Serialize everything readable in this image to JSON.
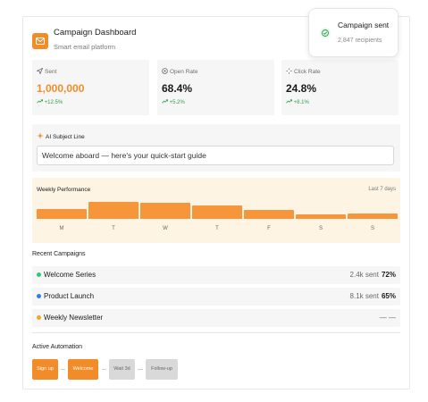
{
  "header": {
    "title": "Campaign Dashboard",
    "subtitle": "Smart email platform",
    "logo_icon": "mail-icon",
    "accent_color": "#f28c28"
  },
  "toast": {
    "title": "Campaign sent",
    "subtitle": "2,847 recipients",
    "icon": "check-circle-icon",
    "color": "#2e9e4a"
  },
  "stats": [
    {
      "label": "Sent",
      "icon": "send-icon",
      "value": "1,000,000",
      "delta": "+12.5%",
      "value_color": "#f28c28"
    },
    {
      "label": "Open Rate",
      "icon": "eye-icon",
      "value": "68.4%",
      "delta": "+5.2%",
      "value_color": "#1a1a1a"
    },
    {
      "label": "Click Rate",
      "icon": "cursor-icon",
      "value": "24.8%",
      "delta": "+8.1%",
      "value_color": "#1a1a1a"
    }
  ],
  "ai": {
    "label": "AI Subject Line",
    "icon": "sparkle-icon",
    "value": "Welcome aboard — here's your quick-start guide"
  },
  "performance": {
    "title": "Weekly Performance",
    "range": "Last 7 days"
  },
  "chart_data": {
    "type": "bar",
    "title": "Weekly Performance",
    "categories": [
      "M",
      "T",
      "W",
      "T",
      "F",
      "S",
      "S"
    ],
    "values": [
      58,
      100,
      94,
      81,
      54,
      27,
      33
    ],
    "bar_color": "#f7953a"
  },
  "campaigns": {
    "title": "Recent Campaigns",
    "items": [
      {
        "name": "Welcome Series",
        "sent": "2.4k sent",
        "rate": "72%",
        "dot_color": "#2ecc71"
      },
      {
        "name": "Product Launch",
        "sent": "8.1k sent",
        "rate": "65%",
        "dot_color": "#2f7df6"
      },
      {
        "name": "Weekly Newsletter",
        "sent": "— —",
        "rate": "",
        "dot_color": "#f5a623"
      }
    ]
  },
  "automation": {
    "title": "Active Automation",
    "steps": [
      {
        "label": "Sign up",
        "active": true
      },
      {
        "label": "Welcome",
        "active": true
      },
      {
        "label": "Wait 3d",
        "active": false
      },
      {
        "label": "Follow-up",
        "active": false
      }
    ]
  }
}
